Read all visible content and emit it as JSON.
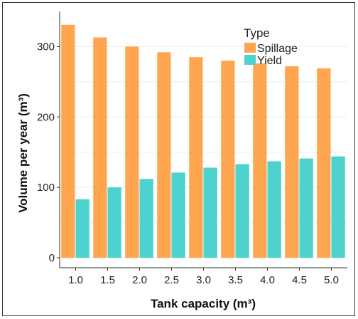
{
  "chart_data": {
    "type": "bar",
    "xlabel": "Tank capacity (m³)",
    "ylabel": "Volume per year (m³)",
    "categories": [
      "1.0",
      "1.5",
      "2.0",
      "2.5",
      "3.0",
      "3.5",
      "4.0",
      "4.5",
      "5.0"
    ],
    "series": [
      {
        "name": "Spillage",
        "color": "#FFA54F",
        "values": [
          331,
          313,
          300,
          292,
          285,
          280,
          276,
          272,
          269
        ]
      },
      {
        "name": "Yield",
        "color": "#4ED2CD",
        "values": [
          83,
          100,
          112,
          121,
          128,
          133,
          137,
          141,
          144
        ]
      }
    ],
    "ylim": [
      0,
      350
    ],
    "yticks": [
      0,
      100,
      200,
      300
    ],
    "legend": {
      "title": "Type",
      "position": "top-right inside"
    },
    "grid": true
  }
}
